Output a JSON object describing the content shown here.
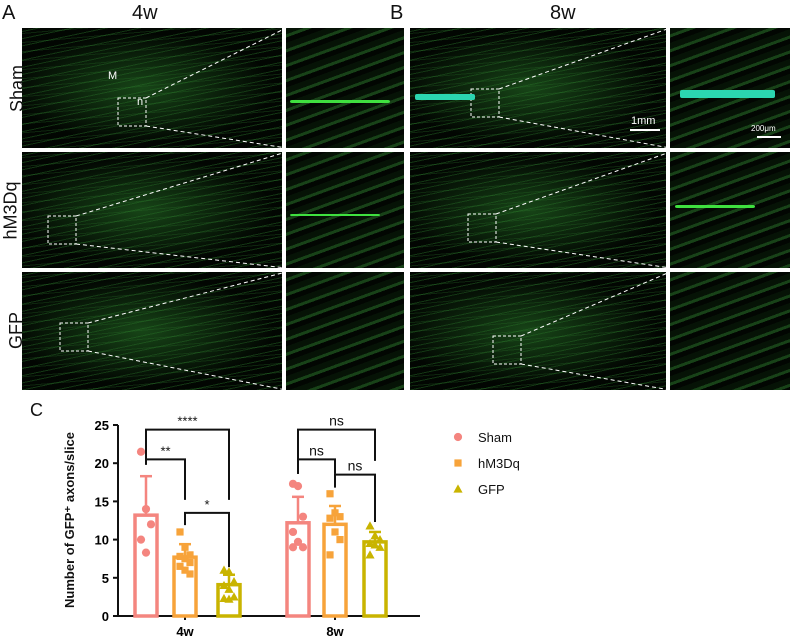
{
  "panels": {
    "a_label": "A",
    "b_label": "B",
    "c_label": "C",
    "col_4w": "4w",
    "col_8w": "8w",
    "rows": [
      "Sham",
      "hM3Dq",
      "GFP"
    ],
    "label_m": "M",
    "label_n": "n",
    "scale_1mm": "1mm",
    "scale_200um": "200μm"
  },
  "chart_data": {
    "type": "bar",
    "categories": [
      "4w",
      "8w"
    ],
    "ylabel": "Number of GFP⁺ axons/slice",
    "ylim": [
      0,
      25
    ],
    "yticks": [
      0,
      5,
      10,
      15,
      20,
      25
    ],
    "legend_position": "right",
    "series": [
      {
        "name": "Sham",
        "color": "#f4857f",
        "marker": "circle",
        "means": [
          13.2,
          12.2
        ],
        "sd": [
          5.1,
          3.4
        ],
        "points": [
          [
            21.5,
            14,
            12,
            10,
            8.3
          ],
          [
            17.3,
            17,
            13,
            11,
            9.7,
            9,
            9
          ]
        ]
      },
      {
        "name": "hM3Dq",
        "color": "#f7a33a",
        "marker": "square",
        "means": [
          7.7,
          12.0
        ],
        "sd": [
          1.7,
          2.4
        ],
        "points": [
          [
            11,
            9,
            8,
            7.8,
            7.5,
            7,
            6.5,
            6,
            5.5
          ],
          [
            16,
            13.5,
            13,
            12.8,
            11,
            10,
            8
          ]
        ]
      },
      {
        "name": "GFP",
        "color": "#c9b400",
        "marker": "triangle",
        "means": [
          4.1,
          9.7
        ],
        "sd": [
          1.3,
          1.3
        ],
        "points": [
          [
            6,
            5.8,
            4.5,
            4,
            3.5,
            2.5,
            2.3,
            2.2
          ],
          [
            11.8,
            10.5,
            10,
            9.5,
            9.3,
            9,
            8
          ]
        ]
      }
    ],
    "significance": [
      {
        "group": "4w",
        "from": "Sham",
        "to": "GFP",
        "label": "****"
      },
      {
        "group": "4w",
        "from": "Sham",
        "to": "hM3Dq",
        "label": "**"
      },
      {
        "group": "4w",
        "from": "hM3Dq",
        "to": "GFP",
        "label": "*"
      },
      {
        "group": "8w",
        "from": "Sham",
        "to": "GFP",
        "label": "ns"
      },
      {
        "group": "8w",
        "from": "Sham",
        "to": "hM3Dq",
        "label": "ns"
      },
      {
        "group": "8w",
        "from": "hM3Dq",
        "to": "GFP",
        "label": "ns"
      }
    ]
  }
}
